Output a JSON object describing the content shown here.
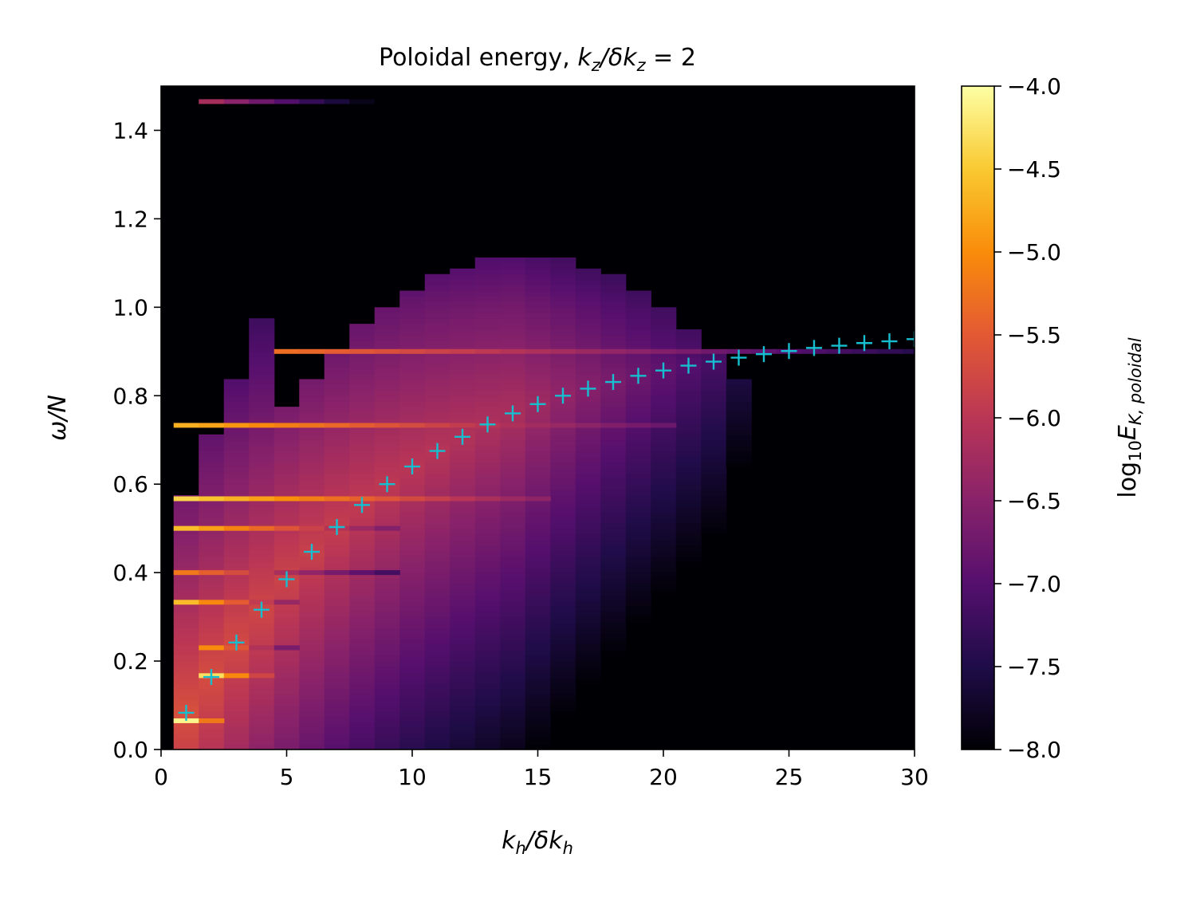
{
  "chart_data": {
    "type": "heatmap",
    "title": {
      "prefix": "Poloidal energy, ",
      "k": "k",
      "sub_z": "z",
      "slash_delta": "/δk",
      "sub_z2": "z",
      "equals": " = 2"
    },
    "xlabel": {
      "k": "k",
      "sub_h": "h",
      "slash_delta": "/δk",
      "sub_h2": "h"
    },
    "ylabel": {
      "omega_over_N": "ω/N"
    },
    "colorbar_label": {
      "log": "log",
      "sub_10": "10",
      "E": "E",
      "sub_K": "K, poloidal"
    },
    "xlim": [
      0,
      30
    ],
    "ylim": [
      0,
      1.5
    ],
    "color_range": [
      -8.0,
      -4.0
    ],
    "colormap": "inferno",
    "x_ticks": [
      0,
      5,
      10,
      15,
      20,
      25,
      30
    ],
    "x_tick_labels": [
      "0",
      "5",
      "10",
      "15",
      "20",
      "25",
      "30"
    ],
    "y_ticks": [
      0.0,
      0.2,
      0.4,
      0.6,
      0.8,
      1.0,
      1.2,
      1.4
    ],
    "y_tick_labels": [
      "0.0",
      "0.2",
      "0.4",
      "0.6",
      "0.8",
      "1.0",
      "1.2",
      "1.4"
    ],
    "colorbar_ticks": [
      -4.0,
      -4.5,
      -5.0,
      -5.5,
      -6.0,
      -6.5,
      -7.0,
      -7.5,
      -8.0
    ],
    "colorbar_tick_labels": [
      "−4.0",
      "−4.5",
      "−5.0",
      "−5.5",
      "−6.0",
      "−6.5",
      "−7.0",
      "−7.5",
      "−8.0"
    ],
    "kh_bins": [
      1,
      2,
      3,
      4,
      5,
      6,
      7,
      8,
      9,
      10,
      11,
      12,
      13,
      14,
      15,
      16,
      17,
      18,
      19,
      20,
      21,
      22,
      23,
      24,
      25,
      26,
      27,
      28,
      29
    ],
    "bright_bands": [
      {
        "omega": 0.065,
        "kh_from": 0.5,
        "kh_to": 2.0,
        "level": -4.1
      },
      {
        "omega": 0.167,
        "kh_from": 1.5,
        "kh_to": 4.0,
        "level": -4.3
      },
      {
        "omega": 0.23,
        "kh_from": 1.5,
        "kh_to": 5.5,
        "level": -5.0
      },
      {
        "omega": 0.333,
        "kh_from": 0.5,
        "kh_to": 5.0,
        "level": -4.6
      },
      {
        "omega": 0.4,
        "kh_from": 0.5,
        "kh_to": 9.0,
        "level": -5.2
      },
      {
        "omega": 0.5,
        "kh_from": 0.5,
        "kh_to": 9.0,
        "level": -4.6
      },
      {
        "omega": 0.567,
        "kh_from": 0.5,
        "kh_to": 15.0,
        "level": -4.4
      },
      {
        "omega": 0.733,
        "kh_from": 0.5,
        "kh_to": 20.0,
        "level": -4.7
      },
      {
        "omega": 0.9,
        "kh_from": 4.5,
        "kh_to": 30.0,
        "level": -5.3
      },
      {
        "omega": 1.465,
        "kh_from": 1.5,
        "kh_to": 9.5,
        "level": -6.2
      }
    ],
    "series": [
      {
        "marker": "+",
        "color": "#17becf",
        "x": [
          1,
          2,
          3,
          4,
          5,
          6,
          7,
          8,
          9,
          10,
          11,
          12,
          13,
          14,
          15,
          16,
          17,
          18,
          19,
          20,
          21,
          22,
          23,
          24,
          25,
          26,
          27,
          28,
          29,
          30
        ],
        "y": [
          0.083,
          0.164,
          0.242,
          0.316,
          0.385,
          0.447,
          0.503,
          0.553,
          0.6,
          0.64,
          0.675,
          0.707,
          0.735,
          0.76,
          0.781,
          0.8,
          0.816,
          0.831,
          0.845,
          0.857,
          0.868,
          0.877,
          0.886,
          0.894,
          0.901,
          0.908,
          0.913,
          0.919,
          0.923,
          0.928
        ]
      }
    ]
  }
}
